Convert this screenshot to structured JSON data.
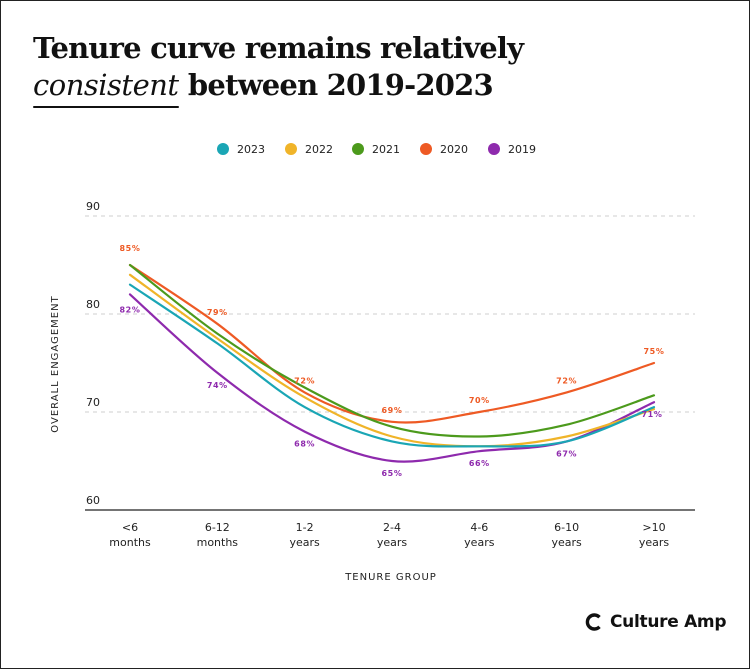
{
  "title": {
    "line1": "Tenure curve remains relatively",
    "handwritten": "consistent",
    "line2_rest": " between 2019-2023"
  },
  "brand": {
    "name": "Culture Amp"
  },
  "chart_data": {
    "type": "line",
    "title": "Tenure curve remains relatively consistent between 2019-2023",
    "xlabel": "TENURE GROUP",
    "ylabel": "OVERALL ENGAGEMENT",
    "ylim": [
      60,
      90
    ],
    "yticks": [
      60,
      70,
      80,
      90
    ],
    "grid": true,
    "legend_position": "top-center",
    "categories": [
      [
        "<6",
        "months"
      ],
      [
        "6-12",
        "months"
      ],
      [
        "1-2",
        "years"
      ],
      [
        "2-4",
        "years"
      ],
      [
        "4-6",
        "years"
      ],
      [
        "6-10",
        "years"
      ],
      [
        ">10",
        "years"
      ]
    ],
    "series": [
      {
        "name": "2023",
        "color": "#1aa6b5",
        "values": [
          83,
          77,
          70.5,
          67,
          66.5,
          67,
          70.5
        ]
      },
      {
        "name": "2022",
        "color": "#f0b429",
        "values": [
          84,
          77.5,
          71.5,
          67.5,
          66.5,
          67.5,
          70.3
        ]
      },
      {
        "name": "2021",
        "color": "#4c9a1c",
        "values": [
          85,
          78,
          72.5,
          68.5,
          67.5,
          68.7,
          71.7
        ]
      },
      {
        "name": "2020",
        "color": "#ee5a24",
        "values": [
          85,
          79,
          72,
          69,
          70,
          72,
          75
        ],
        "labels": [
          "85%",
          "79%",
          "72%",
          "69%",
          "70%",
          "72%",
          "75%"
        ]
      },
      {
        "name": "2019",
        "color": "#8e2aad",
        "values": [
          82,
          74,
          68,
          65,
          66,
          67,
          71
        ],
        "labels": [
          "82%",
          "74%",
          "68%",
          "65%",
          "66%",
          "67%",
          "71%"
        ]
      }
    ]
  }
}
